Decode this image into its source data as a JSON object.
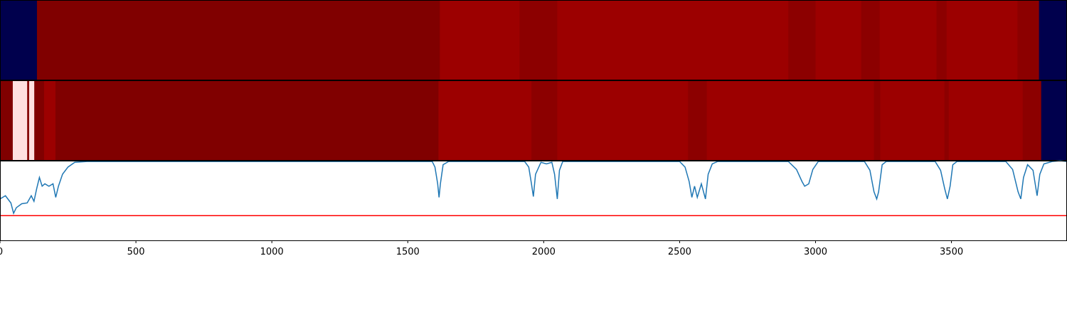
{
  "chart_data": [
    {
      "type": "heatmap",
      "colormap": "seismic",
      "vlim": [
        0,
        1
      ],
      "xlim": [
        0,
        3925
      ],
      "edges": [
        0,
        136,
        1618,
        1911,
        2050,
        2900,
        3000,
        3168,
        3236,
        3445,
        3482,
        3743,
        3822,
        3925
      ],
      "values": [
        0,
        1.0,
        0.945,
        0.975,
        0.945,
        0.975,
        0.945,
        0.975,
        0.945,
        0.975,
        0.945,
        0.975,
        0
      ]
    },
    {
      "type": "heatmap",
      "colormap": "seismic",
      "vlim": [
        0,
        1
      ],
      "xlim": [
        0,
        3925
      ],
      "edges": [
        0,
        47,
        100,
        107,
        126,
        162,
        204,
        1613,
        1955,
        2050,
        2531,
        2600,
        3215,
        3238,
        3474,
        3490,
        3762,
        3830,
        3925
      ],
      "values": [
        1.0,
        0.53,
        1.0,
        0.53,
        1.0,
        0.945,
        1.0,
        0.945,
        0.975,
        0.945,
        0.975,
        0.945,
        0.975,
        0.945,
        0.975,
        0.945,
        0.975,
        0
      ]
    },
    {
      "type": "line",
      "color": "#1f77b4",
      "xlim": [
        0,
        3925
      ],
      "ylim": [
        0,
        1
      ],
      "xticks": [
        0,
        500,
        1000,
        1500,
        2000,
        2500,
        3000,
        3500
      ],
      "hline": {
        "value": 0.31,
        "color": "#ff0000"
      },
      "x": [
        0,
        20,
        40,
        50,
        60,
        80,
        100,
        115,
        125,
        135,
        145,
        155,
        165,
        180,
        195,
        205,
        215,
        230,
        250,
        275,
        320,
        1590,
        1600,
        1610,
        1615,
        1620,
        1630,
        1650,
        1930,
        1945,
        1955,
        1962,
        1970,
        1990,
        2010,
        2030,
        2040,
        2050,
        2058,
        2070,
        2500,
        2520,
        2535,
        2545,
        2555,
        2565,
        2580,
        2595,
        2605,
        2620,
        2640,
        2900,
        2930,
        2950,
        2960,
        2975,
        2990,
        3010,
        3180,
        3200,
        3215,
        3225,
        3232,
        3245,
        3260,
        3440,
        3460,
        3475,
        3485,
        3495,
        3505,
        3520,
        3700,
        3725,
        3745,
        3755,
        3765,
        3780,
        3800,
        3815,
        3825,
        3840,
        3870,
        3900,
        3925
      ],
      "values": [
        0.52,
        0.56,
        0.47,
        0.34,
        0.41,
        0.46,
        0.47,
        0.56,
        0.49,
        0.65,
        0.79,
        0.68,
        0.71,
        0.68,
        0.71,
        0.54,
        0.68,
        0.83,
        0.92,
        0.98,
        0.99,
        0.99,
        0.92,
        0.71,
        0.54,
        0.71,
        0.95,
        0.99,
        0.99,
        0.92,
        0.71,
        0.55,
        0.83,
        0.98,
        0.96,
        0.98,
        0.83,
        0.52,
        0.88,
        0.99,
        0.99,
        0.92,
        0.74,
        0.54,
        0.68,
        0.54,
        0.71,
        0.52,
        0.83,
        0.96,
        0.99,
        0.99,
        0.89,
        0.74,
        0.68,
        0.71,
        0.89,
        0.99,
        0.99,
        0.88,
        0.61,
        0.52,
        0.61,
        0.95,
        0.99,
        0.99,
        0.88,
        0.65,
        0.52,
        0.68,
        0.95,
        0.99,
        0.99,
        0.89,
        0.61,
        0.52,
        0.79,
        0.95,
        0.88,
        0.56,
        0.83,
        0.96,
        0.99,
        1.0,
        0.99
      ]
    }
  ]
}
